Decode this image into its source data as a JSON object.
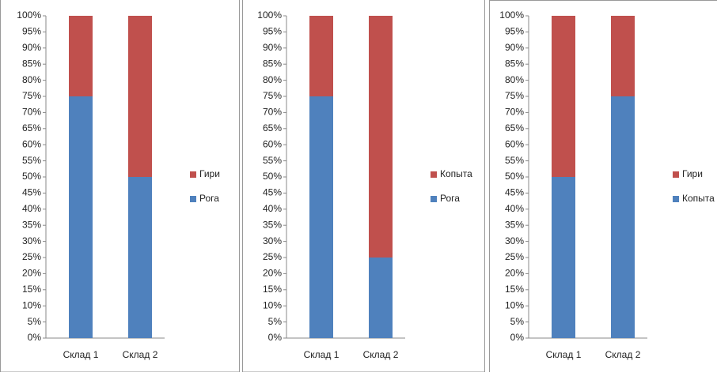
{
  "chart_data": [
    {
      "type": "stacked-bar",
      "categories": [
        "Склад 1",
        "Склад 2"
      ],
      "series": [
        {
          "name": "Рога",
          "color": "#4f81bd",
          "values": [
            75,
            50
          ]
        },
        {
          "name": "Гири",
          "color": "#c0504d",
          "values": [
            25,
            50
          ]
        }
      ],
      "ylim": [
        0,
        100
      ],
      "yticks": [
        {
          "value": 0,
          "label": "0%"
        },
        {
          "value": 5,
          "label": "5%"
        },
        {
          "value": 10,
          "label": "10%"
        },
        {
          "value": 15,
          "label": "15%"
        },
        {
          "value": 20,
          "label": "20%"
        },
        {
          "value": 25,
          "label": "25%"
        },
        {
          "value": 30,
          "label": "30%"
        },
        {
          "value": 35,
          "label": "35%"
        },
        {
          "value": 40,
          "label": "40%"
        },
        {
          "value": 45,
          "label": "45%"
        },
        {
          "value": 50,
          "label": "50%"
        },
        {
          "value": 55,
          "label": "55%"
        },
        {
          "value": 60,
          "label": "60%"
        },
        {
          "value": 65,
          "label": "65%"
        },
        {
          "value": 70,
          "label": "70%"
        },
        {
          "value": 75,
          "label": "75%"
        },
        {
          "value": 80,
          "label": "80%"
        },
        {
          "value": 85,
          "label": "85%"
        },
        {
          "value": 90,
          "label": "90%"
        },
        {
          "value": 95,
          "label": "95%"
        },
        {
          "value": 100,
          "label": "100%"
        }
      ],
      "legend": "right"
    },
    {
      "type": "stacked-bar",
      "categories": [
        "Склад 1",
        "Склад 2"
      ],
      "series": [
        {
          "name": "Рога",
          "color": "#4f81bd",
          "values": [
            75,
            25
          ]
        },
        {
          "name": "Копыта",
          "color": "#c0504d",
          "values": [
            25,
            75
          ]
        }
      ],
      "ylim": [
        0,
        100
      ],
      "yticks": [
        {
          "value": 0,
          "label": "0%"
        },
        {
          "value": 5,
          "label": "5%"
        },
        {
          "value": 10,
          "label": "10%"
        },
        {
          "value": 15,
          "label": "15%"
        },
        {
          "value": 20,
          "label": "20%"
        },
        {
          "value": 25,
          "label": "25%"
        },
        {
          "value": 30,
          "label": "30%"
        },
        {
          "value": 35,
          "label": "35%"
        },
        {
          "value": 40,
          "label": "40%"
        },
        {
          "value": 45,
          "label": "45%"
        },
        {
          "value": 50,
          "label": "50%"
        },
        {
          "value": 55,
          "label": "55%"
        },
        {
          "value": 60,
          "label": "60%"
        },
        {
          "value": 65,
          "label": "65%"
        },
        {
          "value": 70,
          "label": "70%"
        },
        {
          "value": 75,
          "label": "75%"
        },
        {
          "value": 80,
          "label": "80%"
        },
        {
          "value": 85,
          "label": "85%"
        },
        {
          "value": 90,
          "label": "90%"
        },
        {
          "value": 95,
          "label": "95%"
        },
        {
          "value": 100,
          "label": "100%"
        }
      ],
      "legend": "right"
    },
    {
      "type": "stacked-bar",
      "categories": [
        "Склад 1",
        "Склад 2"
      ],
      "series": [
        {
          "name": "Копыта",
          "color": "#4f81bd",
          "values": [
            50,
            75
          ]
        },
        {
          "name": "Гири",
          "color": "#c0504d",
          "values": [
            50,
            25
          ]
        }
      ],
      "ylim": [
        0,
        100
      ],
      "yticks": [
        {
          "value": 0,
          "label": "0%"
        },
        {
          "value": 5,
          "label": "5%"
        },
        {
          "value": 10,
          "label": "10%"
        },
        {
          "value": 15,
          "label": "15%"
        },
        {
          "value": 20,
          "label": "20%"
        },
        {
          "value": 25,
          "label": "25%"
        },
        {
          "value": 30,
          "label": "30%"
        },
        {
          "value": 35,
          "label": "35%"
        },
        {
          "value": 40,
          "label": "40%"
        },
        {
          "value": 45,
          "label": "45%"
        },
        {
          "value": 50,
          "label": "50%"
        },
        {
          "value": 55,
          "label": "55%"
        },
        {
          "value": 60,
          "label": "60%"
        },
        {
          "value": 65,
          "label": "65%"
        },
        {
          "value": 70,
          "label": "70%"
        },
        {
          "value": 75,
          "label": "75%"
        },
        {
          "value": 80,
          "label": "80%"
        },
        {
          "value": 85,
          "label": "85%"
        },
        {
          "value": 90,
          "label": "90%"
        },
        {
          "value": 95,
          "label": "95%"
        },
        {
          "value": 100,
          "label": "100%"
        }
      ],
      "legend": "right"
    }
  ]
}
